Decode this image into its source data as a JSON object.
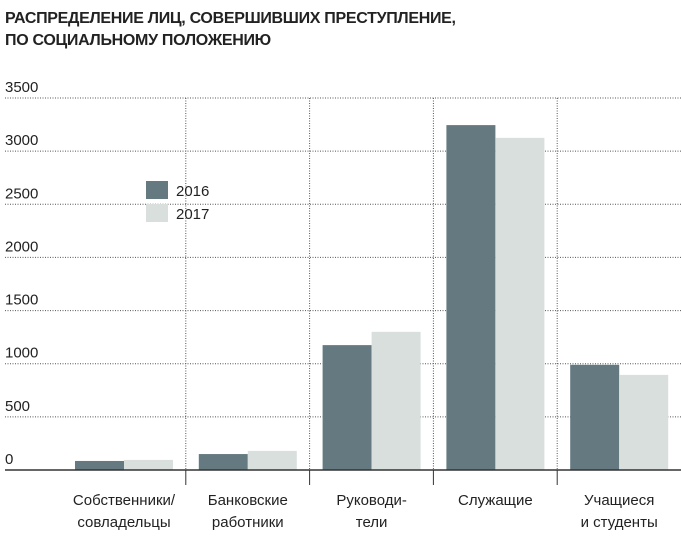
{
  "chart_data": {
    "type": "bar",
    "title": "РАСПРЕДЕЛЕНИЕ ЛИЦ, СОВЕРШИВШИХ ПРЕСТУПЛЕНИЕ,\nПО СОЦИАЛЬНОМУ ПОЛОЖЕНИЮ",
    "categories": [
      "Собственники/\nсовладельцы",
      "Банковские\nработники",
      "Руководи-\nтели",
      "Служащие",
      "Учащиеся\nи студенты"
    ],
    "series": [
      {
        "name": "2016",
        "color": "#647a80",
        "values": [
          85,
          150,
          1175,
          3245,
          990
        ]
      },
      {
        "name": "2017",
        "color": "#d9dfdc",
        "values": [
          95,
          180,
          1300,
          3125,
          895
        ]
      }
    ],
    "ylim": [
      0,
      3500
    ],
    "yticks": [
      0,
      500,
      1000,
      1500,
      2000,
      2500,
      3000,
      3500
    ],
    "grid": true
  }
}
